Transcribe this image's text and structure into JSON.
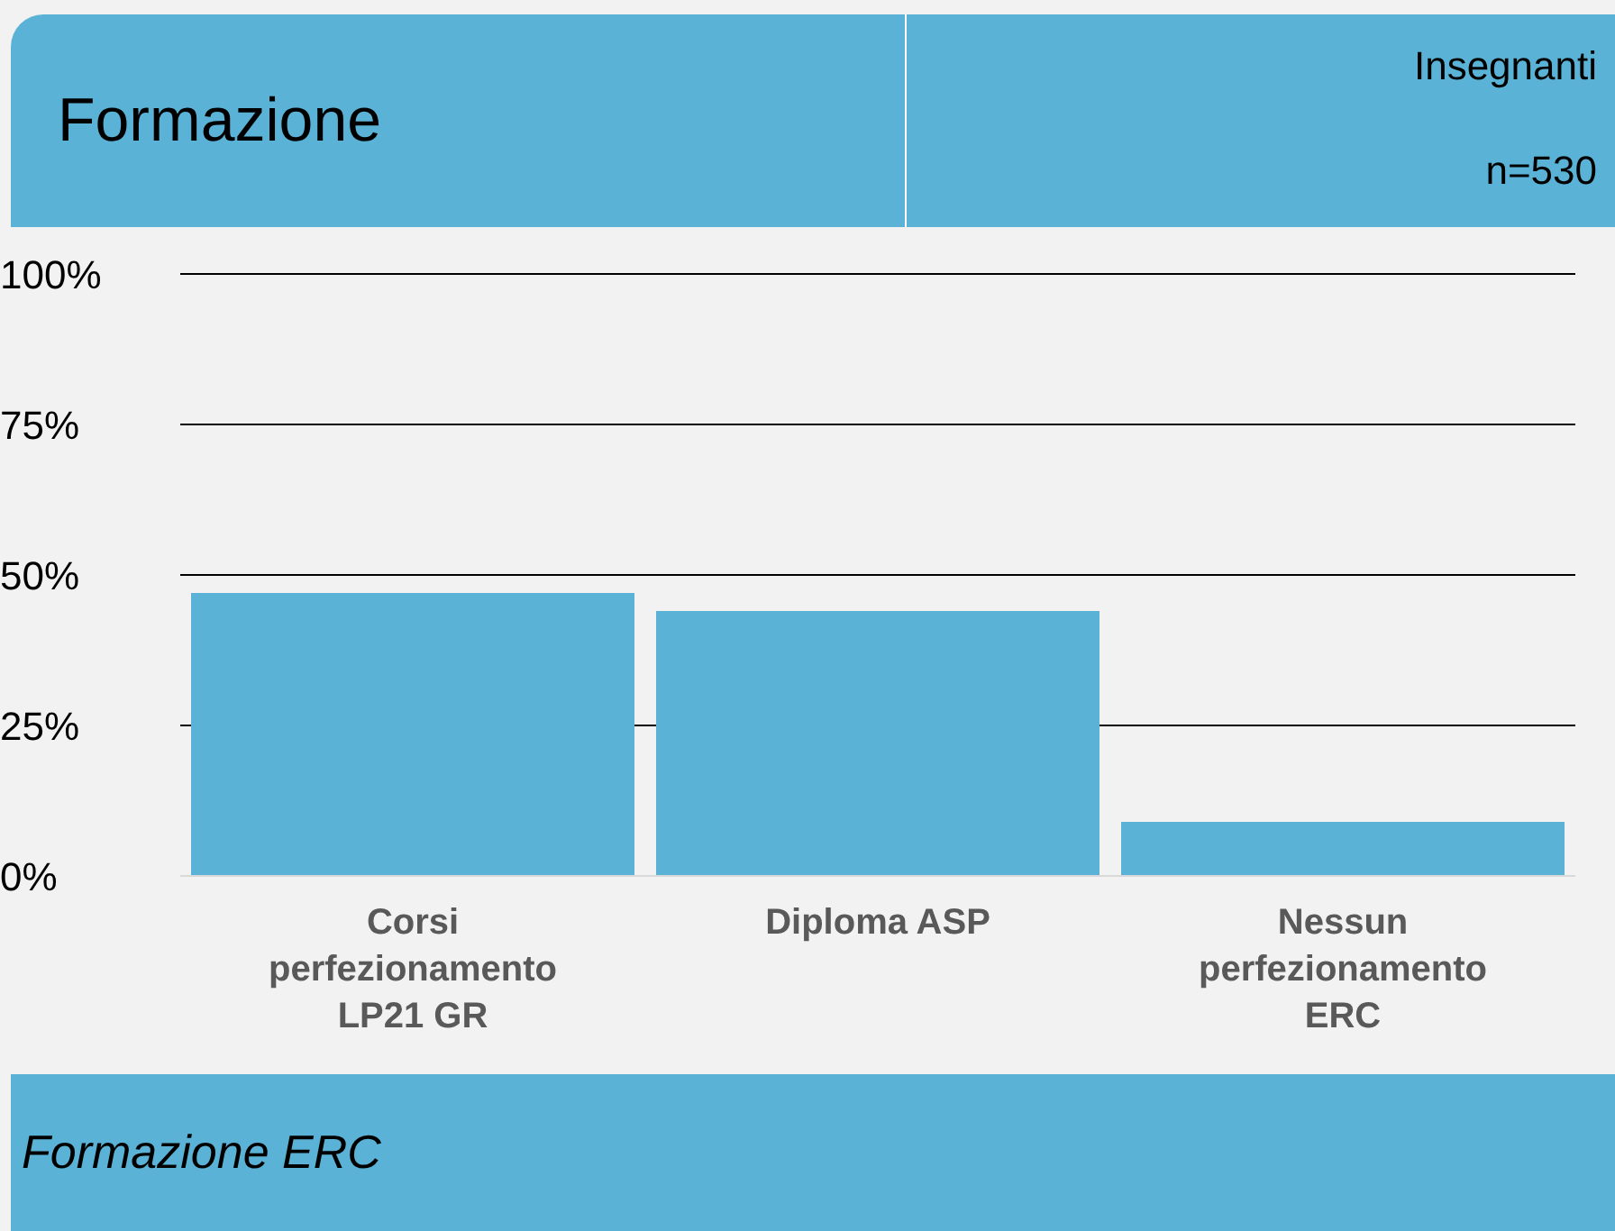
{
  "chart_data": {
    "type": "bar",
    "title": "Formazione",
    "subtitle": "Insegnanti",
    "annotations": [
      "n=530",
      "Formazione ERC"
    ],
    "categories": [
      "Corsi perfezionamento LP21 GR",
      "Diploma ASP",
      "Nessun perfezionamento ERC"
    ],
    "values": [
      47,
      44,
      9
    ],
    "color": "#5ab3d6",
    "ylim": [
      0,
      100
    ],
    "yticks": [
      {
        "value": 0,
        "label": "0%"
      },
      {
        "value": 25,
        "label": "25%"
      },
      {
        "value": 50,
        "label": "50%"
      },
      {
        "value": 75,
        "label": "75%"
      },
      {
        "value": 100,
        "label": "100%"
      }
    ],
    "grid": "y",
    "legend": false
  }
}
